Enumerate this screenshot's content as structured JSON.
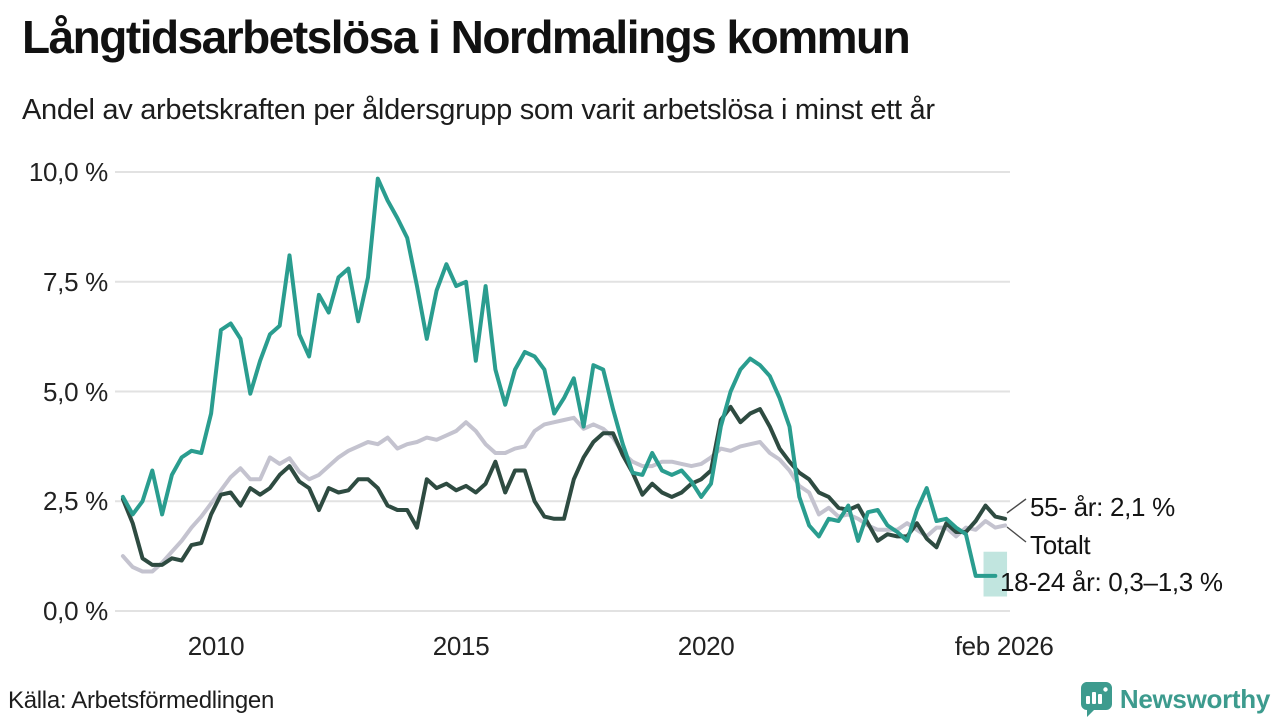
{
  "header": {
    "title": "Långtidsarbetslösa i Nordmalings kommun",
    "subtitle": "Andel av arbetskraften per åldersgrupp som varit arbetslösa i minst ett år"
  },
  "footer": {
    "source": "Källa: Arbetsförmedlingen",
    "brand": "Newsworthy"
  },
  "colors": {
    "youth_line": "#2a9d8f",
    "older_line": "#2e4b41",
    "total_line": "#c4c3cf",
    "uncertainty_band": "#8ecfc5",
    "gridline": "#e2e2e2",
    "connector": "#4a4a4a",
    "brand_teal": "#3d9b8e"
  },
  "chart_data": {
    "type": "line",
    "title": "Långtidsarbetslösa i Nordmalings kommun",
    "subtitle": "Andel av arbetskraften per åldersgrupp som varit arbetslösa i minst ett år",
    "unit": "% av arbetskraften",
    "grid": true,
    "legend_position": "end-of-line-labels",
    "x_domain": [
      2008.0,
      2026.2
    ],
    "y_domain": [
      0,
      10.5
    ],
    "x_start": 2008.1,
    "x_step": 0.2,
    "y_ticks": [
      {
        "v": 0,
        "label": "0,0 %"
      },
      {
        "v": 2.5,
        "label": "2,5 %"
      },
      {
        "v": 5,
        "label": "5,0 %"
      },
      {
        "v": 7.5,
        "label": "7,5 %"
      },
      {
        "v": 10,
        "label": "10,0 %"
      }
    ],
    "x_ticks": [
      {
        "v": 2010,
        "label": "2010"
      },
      {
        "v": 2015,
        "label": "2015"
      },
      {
        "v": 2020,
        "label": "2020"
      },
      {
        "v": 2026.08,
        "label": "feb 2026"
      }
    ],
    "series": [
      {
        "id": "total",
        "name": "Totalt",
        "color": "#c4c3cf",
        "values": [
          1.25,
          1.0,
          0.9,
          0.9,
          1.1,
          1.35,
          1.6,
          1.9,
          2.15,
          2.45,
          2.75,
          3.05,
          3.25,
          3.0,
          3.0,
          3.5,
          3.35,
          3.48,
          3.17,
          3.0,
          3.1,
          3.3,
          3.5,
          3.65,
          3.75,
          3.85,
          3.8,
          3.95,
          3.7,
          3.8,
          3.85,
          3.95,
          3.9,
          4.0,
          4.1,
          4.3,
          4.1,
          3.8,
          3.6,
          3.6,
          3.7,
          3.75,
          4.1,
          4.25,
          4.3,
          4.35,
          4.4,
          4.15,
          4.25,
          4.15,
          3.95,
          3.6,
          3.4,
          3.3,
          3.3,
          3.4,
          3.4,
          3.35,
          3.3,
          3.35,
          3.5,
          3.7,
          3.65,
          3.75,
          3.8,
          3.85,
          3.6,
          3.45,
          3.2,
          2.85,
          2.7,
          2.2,
          2.35,
          2.15,
          2.2,
          2.1,
          1.95,
          1.85,
          1.85,
          1.85,
          2.0,
          1.85,
          1.7,
          1.9,
          1.9,
          1.7,
          1.9,
          1.85,
          2.05,
          1.9,
          1.95
        ]
      },
      {
        "id": "older",
        "name": "55- år",
        "color": "#2e4b41",
        "latest_value": "2,1 %",
        "values": [
          2.55,
          2.0,
          1.2,
          1.05,
          1.05,
          1.2,
          1.15,
          1.5,
          1.55,
          2.2,
          2.65,
          2.7,
          2.4,
          2.8,
          2.65,
          2.8,
          3.1,
          3.3,
          2.95,
          2.8,
          2.3,
          2.8,
          2.7,
          2.75,
          3.0,
          3.0,
          2.8,
          2.4,
          2.3,
          2.3,
          1.9,
          3.0,
          2.8,
          2.9,
          2.75,
          2.85,
          2.7,
          2.9,
          3.4,
          2.7,
          3.2,
          3.2,
          2.5,
          2.15,
          2.1,
          2.1,
          3.0,
          3.5,
          3.85,
          4.05,
          4.05,
          3.55,
          3.15,
          2.65,
          2.9,
          2.7,
          2.6,
          2.7,
          2.9,
          3.0,
          3.2,
          4.35,
          4.65,
          4.3,
          4.5,
          4.6,
          4.2,
          3.7,
          3.4,
          3.15,
          3.0,
          2.7,
          2.6,
          2.35,
          2.3,
          2.4,
          2.0,
          1.6,
          1.75,
          1.7,
          1.7,
          2.0,
          1.65,
          1.45,
          2.0,
          1.8,
          1.8,
          2.05,
          2.4,
          2.15,
          2.1
        ]
      },
      {
        "id": "youth",
        "name": "18-24 år",
        "color": "#2a9d8f",
        "latest_value": "0,3–1,3 %",
        "values": [
          2.6,
          2.2,
          2.5,
          3.2,
          2.2,
          3.1,
          3.5,
          3.65,
          3.6,
          4.5,
          6.4,
          6.55,
          6.2,
          4.95,
          5.7,
          6.3,
          6.5,
          8.1,
          6.3,
          5.8,
          7.2,
          6.8,
          7.6,
          7.8,
          6.6,
          7.6,
          9.85,
          9.35,
          8.95,
          8.5,
          7.4,
          6.2,
          7.3,
          7.9,
          7.4,
          7.5,
          5.7,
          7.4,
          5.5,
          4.7,
          5.5,
          5.9,
          5.8,
          5.5,
          4.5,
          4.85,
          5.3,
          4.2,
          5.6,
          5.5,
          4.6,
          3.8,
          3.15,
          3.1,
          3.6,
          3.2,
          3.1,
          3.2,
          2.95,
          2.6,
          2.9,
          4.2,
          5.0,
          5.5,
          5.75,
          5.6,
          5.35,
          4.85,
          4.2,
          2.6,
          1.95,
          1.7,
          2.1,
          2.05,
          2.4,
          1.6,
          2.25,
          2.3,
          1.95,
          1.8,
          1.6,
          2.3,
          2.8,
          2.05,
          2.1,
          1.9,
          1.75,
          0.8,
          0.8,
          0.8,
          null
        ]
      }
    ],
    "uncertainty_band": {
      "series": "youth",
      "x_from": 2025.66,
      "x_to": 2026.14,
      "y_low": 0.33,
      "y_high": 1.35,
      "color": "#8ecfc5",
      "opacity": 0.55
    },
    "end_labels": {
      "older": {
        "text": "55- år: 2,1 %"
      },
      "total": {
        "text": "Totalt"
      },
      "youth": {
        "text": "18-24 år: 0,3–1,3 %"
      }
    }
  }
}
